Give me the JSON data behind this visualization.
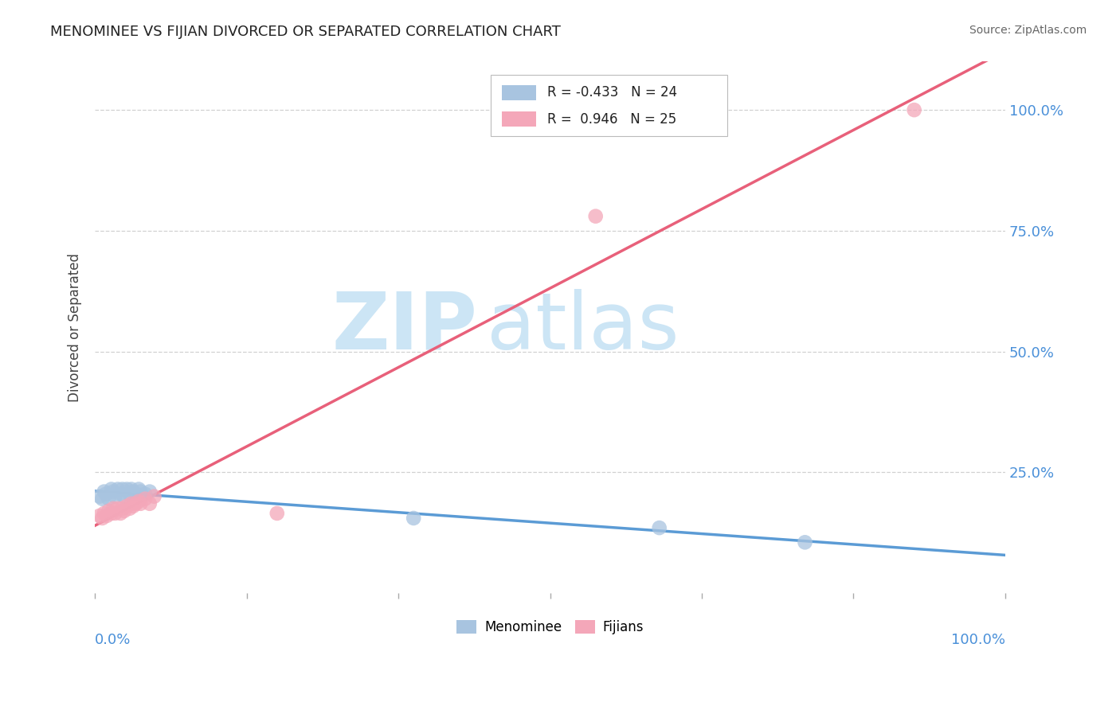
{
  "title": "MENOMINEE VS FIJIAN DIVORCED OR SEPARATED CORRELATION CHART",
  "source": "Source: ZipAtlas.com",
  "ylabel": "Divorced or Separated",
  "legend_label1": "Menominee",
  "legend_label2": "Fijians",
  "r1": -0.433,
  "n1": 24,
  "r2": 0.946,
  "n2": 25,
  "color_menominee": "#a8c4e0",
  "color_fijian": "#f4a7b9",
  "color_line_menominee": "#5b9bd5",
  "color_line_fijian": "#e8607a",
  "color_axis_label": "#4a90d9",
  "watermark_zip_color": "#cce5f5",
  "watermark_atlas_color": "#cce5f5",
  "background_color": "#ffffff",
  "grid_color": "#cccccc",
  "menominee_x": [
    0.005,
    0.008,
    0.01,
    0.012,
    0.015,
    0.018,
    0.02,
    0.022,
    0.025,
    0.028,
    0.03,
    0.032,
    0.035,
    0.038,
    0.04,
    0.042,
    0.045,
    0.048,
    0.05,
    0.055,
    0.06,
    0.35,
    0.62,
    0.78
  ],
  "menominee_y": [
    0.2,
    0.195,
    0.21,
    0.205,
    0.195,
    0.215,
    0.21,
    0.2,
    0.215,
    0.205,
    0.215,
    0.2,
    0.215,
    0.205,
    0.215,
    0.21,
    0.205,
    0.215,
    0.21,
    0.205,
    0.21,
    0.155,
    0.135,
    0.105
  ],
  "fijian_x": [
    0.005,
    0.008,
    0.01,
    0.013,
    0.015,
    0.018,
    0.02,
    0.022,
    0.025,
    0.028,
    0.03,
    0.032,
    0.035,
    0.038,
    0.04,
    0.042,
    0.045,
    0.048,
    0.05,
    0.055,
    0.06,
    0.065,
    0.2,
    0.55,
    0.9
  ],
  "fijian_y": [
    0.16,
    0.155,
    0.165,
    0.16,
    0.17,
    0.165,
    0.175,
    0.165,
    0.175,
    0.165,
    0.175,
    0.17,
    0.18,
    0.175,
    0.185,
    0.18,
    0.185,
    0.19,
    0.185,
    0.195,
    0.185,
    0.2,
    0.165,
    0.78,
    1.0
  ],
  "xlim": [
    0.0,
    1.0
  ],
  "ylim": [
    0.0,
    1.1
  ],
  "yticks": [
    0.25,
    0.5,
    0.75,
    1.0
  ],
  "ytick_labels": [
    "25.0%",
    "50.0%",
    "75.0%",
    "100.0%"
  ],
  "xtick_positions": [
    0.0,
    0.167,
    0.333,
    0.5,
    0.667,
    0.833,
    1.0
  ]
}
